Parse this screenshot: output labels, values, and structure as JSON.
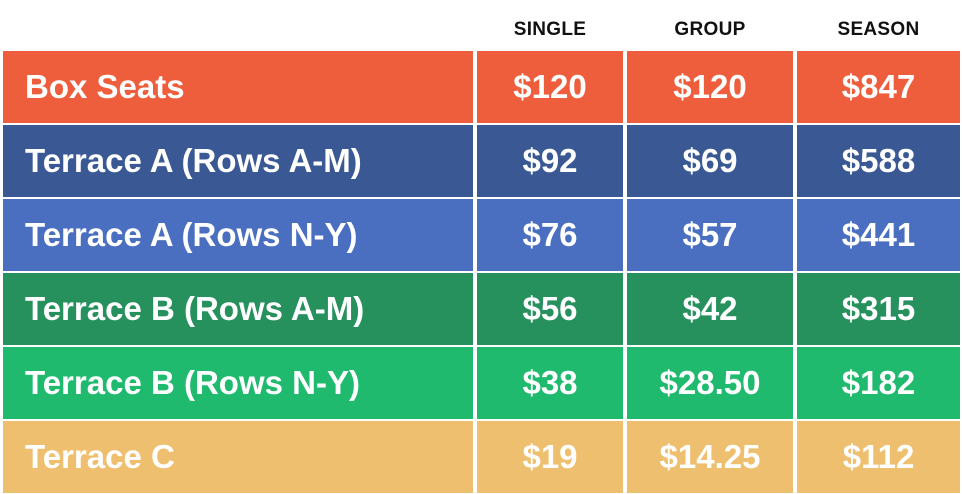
{
  "table": {
    "columns": [
      "SINGLE",
      "GROUP",
      "SEASON"
    ],
    "rows": [
      {
        "label": "Box Seats",
        "single": "$120",
        "group": "$120",
        "season": "$847",
        "color": "#EE5E3C"
      },
      {
        "label": "Terrace A (Rows A-M)",
        "single": "$92",
        "group": "$69",
        "season": "$588",
        "color": "#3A5994"
      },
      {
        "label": "Terrace A (Rows N-Y)",
        "single": "$76",
        "group": "$57",
        "season": "$441",
        "color": "#4A6EC0"
      },
      {
        "label": "Terrace B (Rows A-M)",
        "single": "$56",
        "group": "$42",
        "season": "$315",
        "color": "#27915E"
      },
      {
        "label": "Terrace B (Rows N-Y)",
        "single": "$38",
        "group": "$28.50",
        "season": "$182",
        "color": "#1FBA6E"
      },
      {
        "label": "Terrace C",
        "single": "$19",
        "group": "$14.25",
        "season": "$112",
        "color": "#EEBF6E"
      }
    ]
  }
}
